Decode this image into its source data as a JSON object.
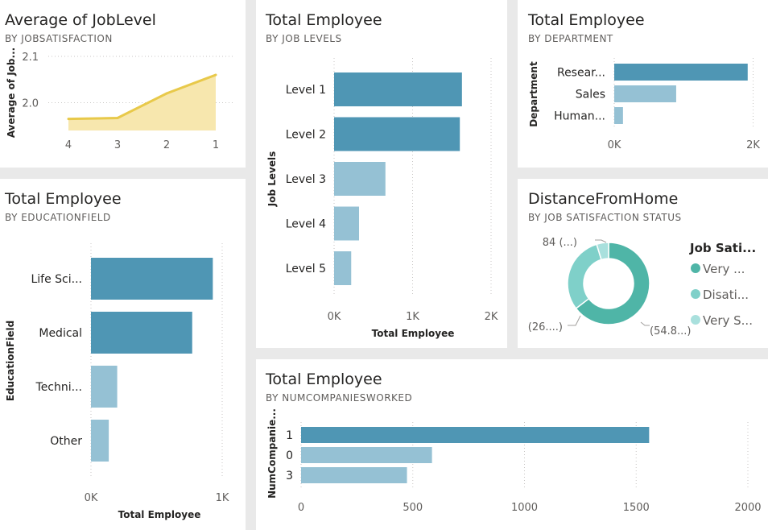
{
  "colors": {
    "dark": "#4f96b4",
    "light": "#95c1d4",
    "area_line": "#e8c94a",
    "area_fill": "#f7e7ae",
    "donut": [
      "#4fb5a7",
      "#7fd0c9",
      "#a9e0dd"
    ]
  },
  "chart_data": [
    {
      "id": "joblevel",
      "type": "area",
      "title": "Average of JobLevel",
      "subtitle": "BY JOBSATISFACTION",
      "ylabel": "Average of Job...",
      "categories": [
        "4",
        "3",
        "2",
        "1"
      ],
      "values": [
        1.965,
        1.967,
        2.02,
        2.06
      ],
      "yticks": [
        "2.1",
        "2.0"
      ],
      "ylim": [
        1.94,
        2.1
      ]
    },
    {
      "id": "joblevels",
      "type": "bar",
      "title": "Total Employee",
      "subtitle": "BY JOB LEVELS",
      "xlabel": "Total Employee",
      "ylabel": "Job Levels",
      "categories": [
        "Level 1",
        "Level 2",
        "Level 3",
        "Level 4",
        "Level 5"
      ],
      "values": [
        1629,
        1602,
        654,
        318,
        218
      ],
      "xticks": [
        "0K",
        "1K",
        "2K"
      ],
      "xlim": [
        0,
        2000
      ]
    },
    {
      "id": "department",
      "type": "bar",
      "title": "Total Employee",
      "subtitle": "BY DEPARTMENT",
      "ylabel": "Department",
      "categories": [
        "Resear...",
        "Sales",
        "Human..."
      ],
      "values": [
        2883,
        1338,
        189
      ],
      "xticks": [
        "0K",
        "2K"
      ],
      "xlim": [
        0,
        3000
      ]
    },
    {
      "id": "educationfield",
      "type": "bar",
      "title": "Total Employee",
      "subtitle": "BY EDUCATIONFIELD",
      "xlabel": "Total Employee",
      "ylabel": "EducationField",
      "categories": [
        "Life Sci...",
        "Medical",
        "Techni...",
        "Other"
      ],
      "values": [
        1300,
        1080,
        280,
        190
      ],
      "xticks": [
        "0K",
        "1K"
      ],
      "xlim": [
        0,
        1400
      ]
    },
    {
      "id": "distance",
      "type": "pie",
      "title": "DistanceFromHome",
      "subtitle": "BY JOB SATISFACTION STATUS",
      "legend_title": "Job Sati...",
      "legend": [
        "Very ...",
        "Disati...",
        "Very S..."
      ],
      "values": [
        54.8,
        26.0,
        4.0
      ],
      "labels": [
        "(54.8...)",
        "(26....)",
        "84 (...)"
      ]
    },
    {
      "id": "numcompanies",
      "type": "bar",
      "title": "Total Employee",
      "subtitle": "BY NUMCOMPANIESWORKED",
      "ylabel": "NumCompanie...",
      "categories": [
        "1",
        "0",
        "3"
      ],
      "values": [
        1558,
        586,
        474
      ],
      "xticks": [
        "0",
        "500",
        "1000",
        "1500",
        "2000"
      ],
      "xlim": [
        0,
        2000
      ]
    }
  ]
}
